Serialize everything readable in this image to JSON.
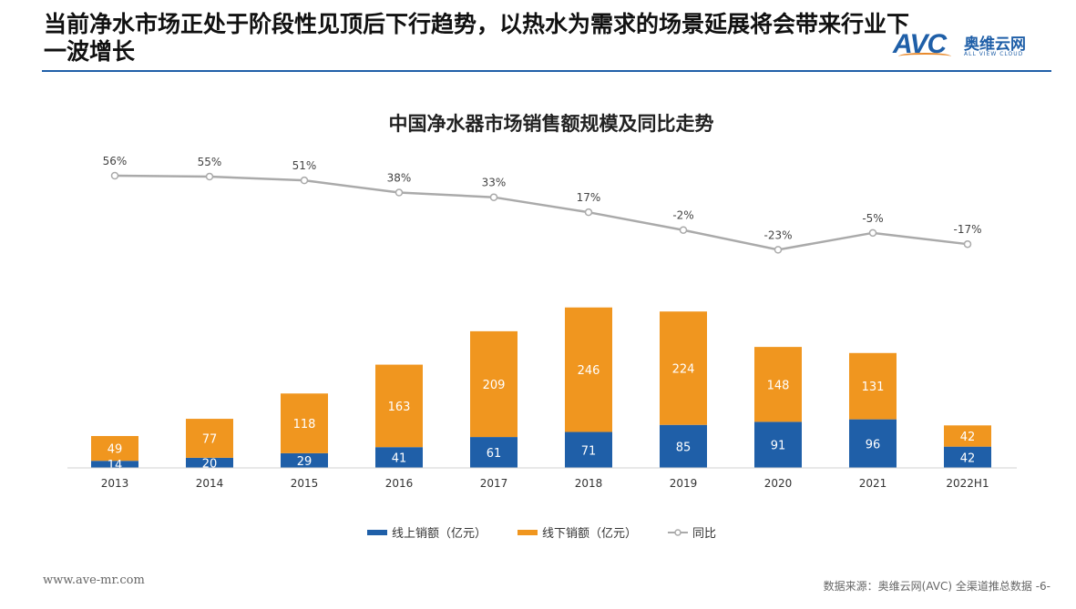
{
  "header": {
    "headline": "当前净水市场正处于阶段性见顶后下行趋势，以热水为需求的场景延展将会带来行业下一波增长",
    "logo_text": "AVC",
    "logo_cn": "奥维云网",
    "logo_en": "ALL VIEW CLOUD",
    "rule_color": "#1f5fa8"
  },
  "chart_data": {
    "type": "bar",
    "title": "中国净水器市场销售额规模及同比走势",
    "categories": [
      "2013",
      "2014",
      "2015",
      "2016",
      "2017",
      "2018",
      "2019",
      "2020",
      "2021",
      "2022H1"
    ],
    "series": [
      {
        "name": "线上销额（亿元）",
        "kind": "bar",
        "stacked": true,
        "color": "#1f5fa8",
        "values": [
          14,
          20,
          29,
          41,
          61,
          71,
          85,
          91,
          96,
          42
        ]
      },
      {
        "name": "线下销额（亿元）",
        "kind": "bar",
        "stacked": true,
        "color": "#f0961f",
        "values": [
          49,
          77,
          118,
          163,
          209,
          246,
          224,
          148,
          131,
          42
        ]
      },
      {
        "name": "同比",
        "kind": "line",
        "color": "#aaaaaa",
        "values": [
          56,
          55,
          51,
          38,
          33,
          17,
          -2,
          -23,
          -5,
          -17
        ],
        "labels": [
          "56%",
          "55%",
          "51%",
          "38%",
          "33%",
          "17%",
          "-2%",
          "-23%",
          "-5%",
          "-17%"
        ]
      }
    ],
    "legend_position": "bottom",
    "grid": false
  },
  "footer": {
    "website": "www.ave-mr.com",
    "source": "数据来源：奥维云网(AVC) 全渠道推总数据",
    "page": "-6-"
  }
}
